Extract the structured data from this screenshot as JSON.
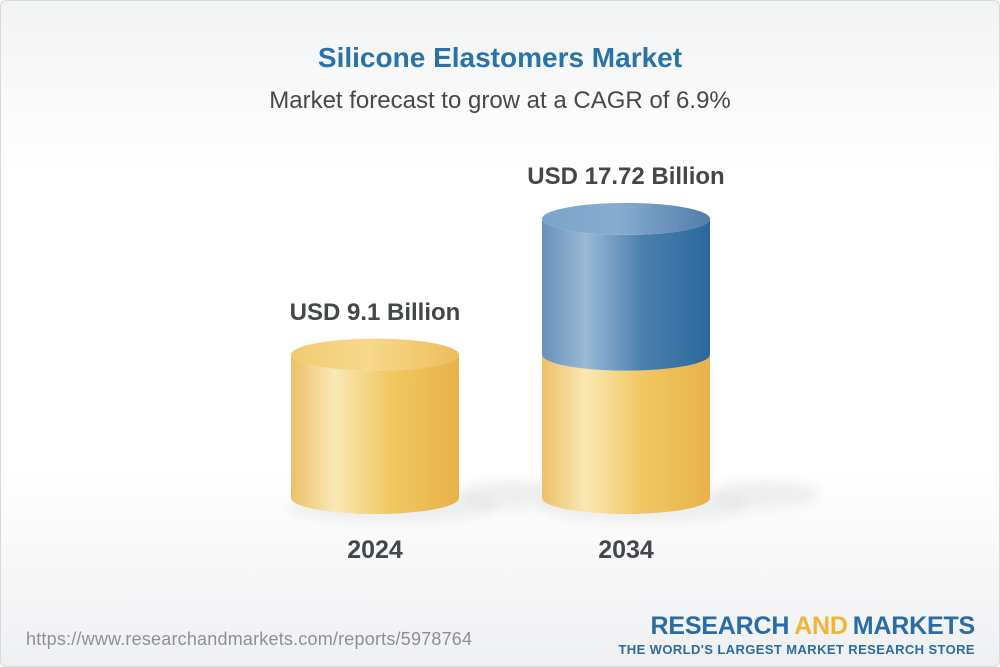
{
  "header": {
    "title": "Silicone Elastomers Market",
    "subtitle": "Market forecast to grow at a CAGR of 6.9%"
  },
  "footer": {
    "url": "https://www.researchandmarkets.com/reports/5978764",
    "logo": {
      "part1": "RESEARCH",
      "part2": "AND",
      "part3": "MARKETS",
      "tagline": "THE WORLD'S LARGEST MARKET RESEARCH STORE"
    }
  },
  "chart_data": {
    "type": "bar",
    "variant": "3d-cylinder",
    "title": "Silicone Elastomers Market",
    "subtitle": "Market forecast to grow at a CAGR of 6.9%",
    "unit": "USD Billion",
    "cagr_percent": 6.9,
    "categories": [
      "2024",
      "2034"
    ],
    "values": [
      9.1,
      17.72
    ],
    "xlabel": "",
    "ylabel": "",
    "legend": false,
    "grid": false,
    "bars": [
      {
        "category": "2024",
        "value": 9.1,
        "value_label": "USD 9.1 Billion",
        "segments": [
          {
            "name": "market-size-2024",
            "value": 9.1,
            "color": "gold"
          }
        ]
      },
      {
        "category": "2034",
        "value": 17.72,
        "value_label": "USD 17.72 Billion",
        "segments": [
          {
            "name": "base-2024",
            "value": 9.1,
            "color": "gold"
          },
          {
            "name": "growth-2024-2034",
            "value": 8.62,
            "color": "blue"
          }
        ]
      }
    ],
    "colors": {
      "gold": {
        "body": [
          "#edc069",
          "#fae8b4",
          "#f0c761",
          "#e9b24a"
        ],
        "top": [
          "#f1ca72",
          "#f6d98c",
          "#ecbe5c"
        ]
      },
      "blue": {
        "body": [
          "#6890ba",
          "#9ab9d6",
          "#4a80ae",
          "#2d689c"
        ],
        "top": [
          "#7ca4c9",
          "#86acd0",
          "#527eaa"
        ]
      }
    }
  },
  "palette": {
    "accent_blue": "#2a73a9",
    "text_dark": "#43474a",
    "text_gray": "#8e9092",
    "logo_blue": "#2a6da4",
    "logo_gold": "#f2b635"
  }
}
